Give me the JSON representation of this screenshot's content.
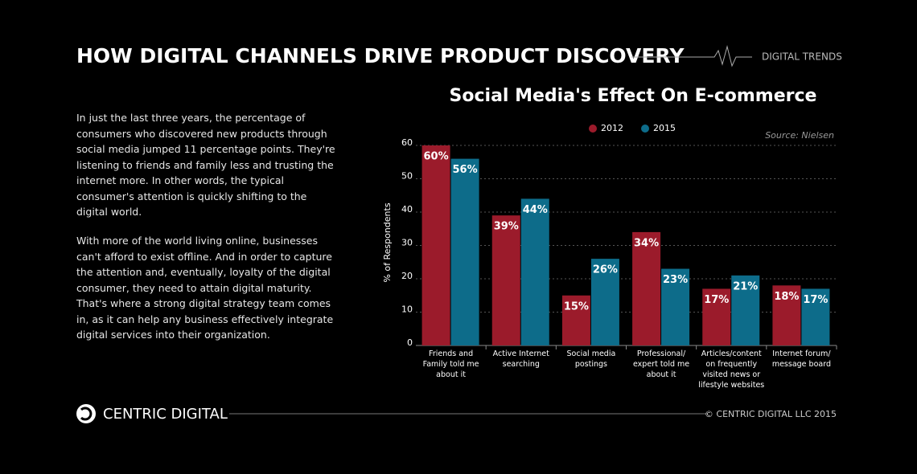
{
  "header": {
    "title": "HOW DIGITAL CHANNELS DRIVE PRODUCT DISCOVERY",
    "tag": "DIGITAL TRENDS"
  },
  "body": {
    "paragraphs": [
      "In just the last three years, the percentage of consumers who discovered new products through social media jumped 11 percentage points. They're listening to friends and family less and trusting the internet more. In other words, the typical consumer's attention is quickly shifting to the digital world.",
      "With more of the world living online, businesses can't afford to exist offline. And in order to capture the attention and, eventually, loyalty of the digital consumer, they need to attain digital maturity. That's where a strong digital strategy team comes in, as it can help any business effectively integrate digital services into their organization."
    ]
  },
  "chart_data": {
    "type": "bar",
    "title": "Social Media's Effect On E-commerce",
    "source": "Source: Nielsen",
    "y_label": "% of Respondents",
    "categories": [
      "Friends and Family told me about it",
      "Active Internet searching",
      "Social media postings",
      "Professional/ expert told me about it",
      "Articles/content on frequently visited news or lifestyle websites",
      "Internet forum/ message board"
    ],
    "series": [
      {
        "name": "2012",
        "color": "#9b1b2b",
        "values": [
          60,
          39,
          15,
          34,
          17,
          18
        ],
        "value_labels": [
          "60%",
          "39%",
          "15%",
          "34%",
          "17%",
          "18%"
        ]
      },
      {
        "name": "2015",
        "color": "#0d6c8a",
        "values": [
          56,
          44,
          26,
          23,
          21,
          17
        ],
        "value_labels": [
          "56%",
          "44%",
          "26%",
          "23%",
          "21%",
          "17%"
        ]
      }
    ],
    "ylim": [
      0,
      60
    ],
    "yticks": [
      0,
      10,
      20,
      30,
      40,
      50,
      60
    ],
    "grid": true
  },
  "footer": {
    "brand": "CENTRIC DIGITAL",
    "copyright": "© CENTRIC DIGITAL LLC 2015"
  }
}
